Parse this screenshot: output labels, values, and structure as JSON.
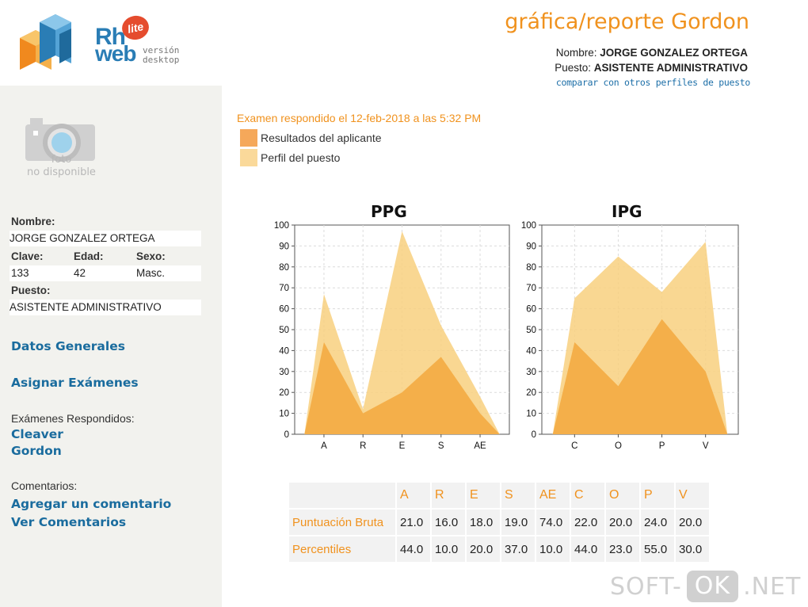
{
  "logo": {
    "rh": "Rh",
    "web": "web",
    "reg": "®",
    "lite": "lite",
    "version_line1": "versión",
    "version_line2": "desktop"
  },
  "header": {
    "title": "gráfica/reporte Gordon",
    "name_label": "Nombre:",
    "name_value": "JORGE GONZALEZ ORTEGA",
    "puesto_label": "Puesto:",
    "puesto_value": "ASISTENTE ADMINISTRATIVO",
    "compare_link": "comparar con otros perfiles de puesto"
  },
  "sidebar": {
    "photo_line1": "foto",
    "photo_line2": "no disponible",
    "nombre_label": "Nombre:",
    "nombre_value": "JORGE GONZALEZ ORTEGA",
    "clave_label": "Clave:",
    "clave_value": "133",
    "edad_label": "Edad:",
    "edad_value": "42",
    "sexo_label": "Sexo:",
    "sexo_value": "Masc.",
    "puesto_label": "Puesto:",
    "puesto_value": "ASISTENTE ADMINISTRATIVO",
    "datos_generales": "Datos Generales",
    "asignar_examenes": "Asignar Exámenes",
    "examenes_respondidos": "Exámenes Respondidos:",
    "exam_cleaver": "Cleaver",
    "exam_gordon": "Gordon",
    "comentarios": "Comentarios:",
    "agregar_comentario": "Agregar un comentario",
    "ver_comentarios": "Ver Comentarios"
  },
  "main": {
    "exam_date": "Examen respondido el 12-feb-2018 a las 5:32 PM",
    "legend": [
      {
        "label": "Resultados del aplicante",
        "color": "#f5a85a"
      },
      {
        "label": "Perfil del puesto",
        "color": "#fad99a"
      }
    ]
  },
  "colors": {
    "accent": "#f0921e",
    "link": "#1a6c9e",
    "applicant_fill": "#f3ad47",
    "profile_fill": "#f8d07f"
  },
  "chart_data": [
    {
      "type": "area",
      "title": "PPG",
      "categories": [
        "A",
        "R",
        "E",
        "S",
        "AE"
      ],
      "ylim": [
        0,
        100
      ],
      "yticks": [
        0,
        10,
        20,
        30,
        40,
        50,
        60,
        70,
        80,
        90,
        100
      ],
      "grid": true,
      "series": [
        {
          "name": "Perfil del puesto",
          "values": [
            67,
            12,
            97,
            52,
            18
          ]
        },
        {
          "name": "Resultados del aplicante",
          "values": [
            44,
            10,
            20,
            37,
            10
          ]
        }
      ]
    },
    {
      "type": "area",
      "title": "IPG",
      "categories": [
        "C",
        "O",
        "P",
        "V"
      ],
      "ylim": [
        0,
        100
      ],
      "yticks": [
        0,
        10,
        20,
        30,
        40,
        50,
        60,
        70,
        80,
        90,
        100
      ],
      "grid": true,
      "series": [
        {
          "name": "Perfil del puesto",
          "values": [
            65,
            85,
            68,
            92
          ]
        },
        {
          "name": "Resultados del aplicante",
          "values": [
            44,
            23,
            55,
            30
          ]
        }
      ]
    }
  ],
  "table": {
    "headers": [
      "A",
      "R",
      "E",
      "S",
      "AE",
      "C",
      "O",
      "P",
      "V"
    ],
    "rows": [
      {
        "label": "Puntuación Bruta",
        "values": [
          "21.0",
          "16.0",
          "18.0",
          "19.0",
          "74.0",
          "22.0",
          "20.0",
          "24.0",
          "20.0"
        ]
      },
      {
        "label": "Percentiles",
        "values": [
          "44.0",
          "10.0",
          "20.0",
          "37.0",
          "10.0",
          "44.0",
          "23.0",
          "55.0",
          "30.0"
        ]
      }
    ]
  },
  "watermark": {
    "left": "SOFT-",
    "ok": "OK",
    "right": ".NET"
  }
}
